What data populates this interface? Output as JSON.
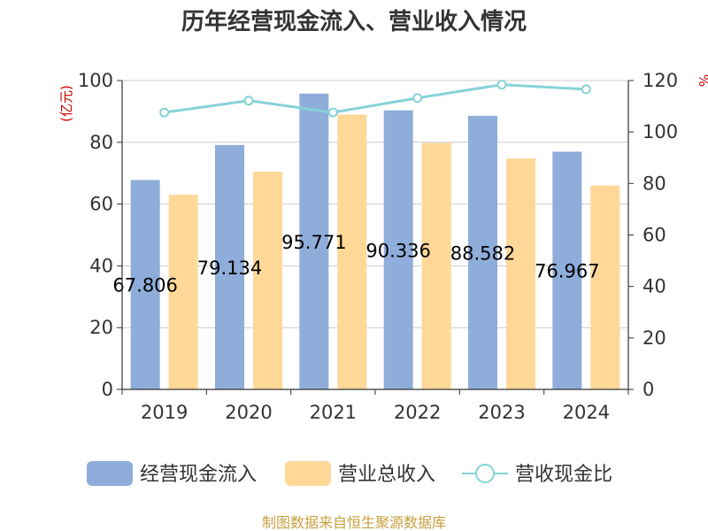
{
  "chart_data": {
    "type": "bar",
    "title": "历年经营现金流入、营业收入情况",
    "categories": [
      "2019",
      "2020",
      "2021",
      "2022",
      "2023",
      "2024"
    ],
    "series": [
      {
        "name": "经营现金流入",
        "type": "bar",
        "axis": "left",
        "color": "#8eadda",
        "values": [
          67.806,
          79.134,
          95.771,
          90.336,
          88.582,
          76.967
        ],
        "labels": [
          "67.806",
          "79.134",
          "95.771",
          "90.336",
          "88.582",
          "76.967"
        ]
      },
      {
        "name": "营业总收入",
        "type": "bar",
        "axis": "left",
        "color": "#ffd898",
        "values": [
          63.0,
          70.5,
          89.0,
          79.8,
          74.8,
          66.0
        ]
      },
      {
        "name": "营收现金比",
        "type": "line",
        "axis": "right",
        "color": "#86d3d6",
        "values": [
          107.6,
          112.2,
          107.6,
          113.2,
          118.4,
          116.6
        ]
      }
    ],
    "yleft": {
      "label": "(亿元)",
      "ylim": [
        0,
        100
      ],
      "ticks": [
        0,
        20,
        40,
        60,
        80,
        100
      ]
    },
    "yright": {
      "label": "%",
      "ylim": [
        0,
        120
      ],
      "ticks": [
        0,
        20,
        40,
        60,
        80,
        100,
        120
      ]
    },
    "grid": true,
    "legend": "bottom",
    "source": "制图数据来自恒生聚源数据库"
  }
}
